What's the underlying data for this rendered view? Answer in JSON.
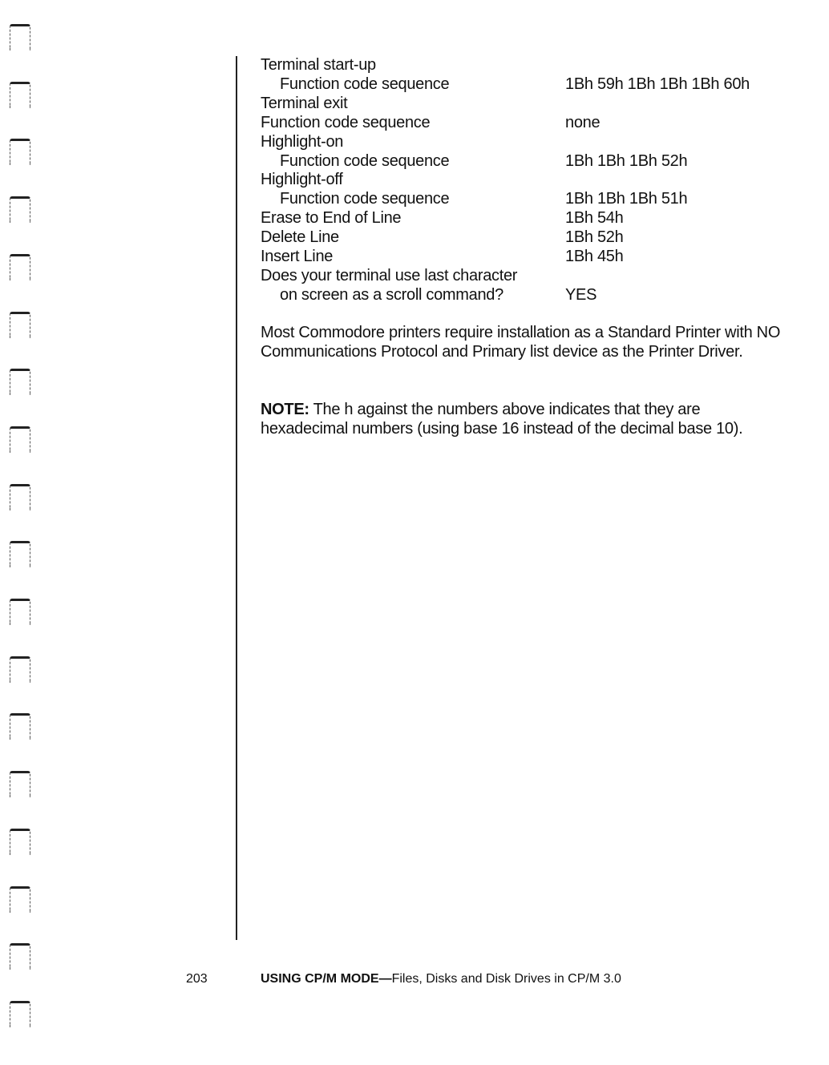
{
  "settings": [
    {
      "label": "Terminal start-up",
      "indent": false,
      "value": ""
    },
    {
      "label": "Function code sequence",
      "indent": true,
      "value": "1Bh 59h 1Bh 1Bh 1Bh 60h"
    },
    {
      "label": "Terminal exit",
      "indent": false,
      "value": ""
    },
    {
      "label": "Function code sequence",
      "indent": false,
      "value": "none"
    },
    {
      "label": "Highlight-on",
      "indent": false,
      "value": ""
    },
    {
      "label": "Function code sequence",
      "indent": true,
      "value": "1Bh 1Bh 1Bh 52h"
    },
    {
      "label": "Highlight-off",
      "indent": false,
      "value": ""
    },
    {
      "label": "Function code sequence",
      "indent": true,
      "value": "1Bh 1Bh 1Bh 51h"
    },
    {
      "label": "Erase to End of Line",
      "indent": false,
      "value": "1Bh 54h"
    },
    {
      "label": "Delete Line",
      "indent": false,
      "value": "1Bh 52h"
    },
    {
      "label": "Insert Line",
      "indent": false,
      "value": "1Bh 45h"
    },
    {
      "label": "Does your terminal use last character",
      "indent": false,
      "value": ""
    },
    {
      "label": "on screen as a scroll command?",
      "indent": true,
      "value": "YES"
    }
  ],
  "printer_paragraph": "Most Commodore printers require installation as a Standard Printer with NO Communications Protocol and Primary list device as the Printer Driver.",
  "note": {
    "label": "NOTE:",
    "text": " The h against the numbers above indicates that they are hexadecimal numbers (using base 16 instead of the decimal base 10)."
  },
  "footer": {
    "page_number": "203",
    "section_bold": "USING CP/M MODE—",
    "section_rest": "Files, Disks and Disk Drives in CP/M 3.0"
  }
}
